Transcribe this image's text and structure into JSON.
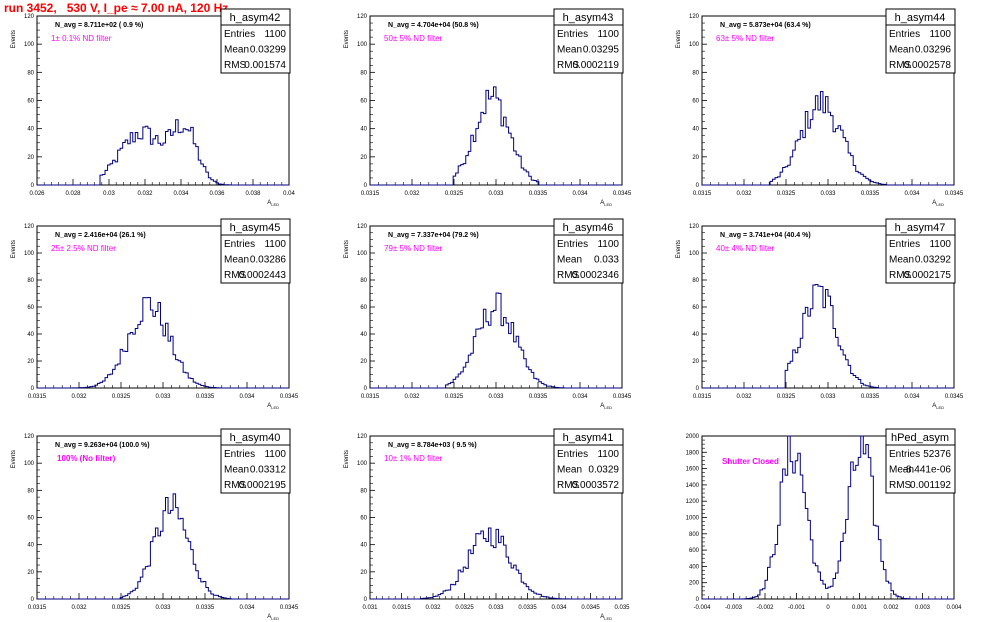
{
  "header": {
    "title": "run 3452,   530 V, I_pe ≈ 7.00 nA, 120 Hz"
  },
  "colors": {
    "histogram": "#000080",
    "annotation": "#ff00ff",
    "title": "#ff0000"
  },
  "chart_data": [
    {
      "type": "bar",
      "name": "h_asym42",
      "title": "N_avg = 8.711e+02 ( 0.9 %)",
      "annotation": "1± 0.1% ND filter",
      "ylabel": "Events",
      "xlabel": "A_{LED}",
      "stats": {
        "Entries": "1100",
        "Mean": "0.03299",
        "RMS": "0.001574"
      },
      "xlim": [
        0.026,
        0.04
      ],
      "ylim": [
        0,
        120
      ],
      "xticks": [
        0.026,
        0.028,
        0.03,
        0.032,
        0.034,
        0.036,
        0.038,
        0.04
      ],
      "xtick_labels": [
        "0.026",
        "0.028",
        "0.03",
        "0.032",
        "0.034",
        "0.036",
        "0.038",
        "0.04"
      ],
      "yticks": [
        0,
        20,
        40,
        60,
        80,
        100,
        120
      ],
      "shape": {
        "type": "bimodal",
        "mu1": 0.0318,
        "s1": 0.0012,
        "a1": 37,
        "mu2": 0.0342,
        "s2": 0.0007,
        "a2": 38,
        "span": [
          0.0295,
          0.0372
        ]
      }
    },
    {
      "type": "bar",
      "name": "h_asym43",
      "title": "N_avg = 4.704e+04 (50.8 %)",
      "annotation": "50± 5% ND filter",
      "ylabel": "Events",
      "xlabel": "A_{LED}",
      "stats": {
        "Entries": "1100",
        "Mean": "0.03295",
        "RMS": "0.0002119"
      },
      "xlim": [
        0.0315,
        0.0345
      ],
      "ylim": [
        0,
        120
      ],
      "xticks": [
        0.0315,
        0.032,
        0.0325,
        0.033,
        0.0335,
        0.034,
        0.0345
      ],
      "xtick_labels": [
        "0.0315",
        "0.032",
        "0.0325",
        "0.033",
        "0.0335",
        "0.034",
        "0.0345"
      ],
      "yticks": [
        0,
        20,
        40,
        60,
        80,
        100,
        120
      ],
      "shape": {
        "type": "gauss",
        "mu": 0.03295,
        "s": 0.00021,
        "a": 62,
        "span": [
          0.0325,
          0.0335
        ]
      }
    },
    {
      "type": "bar",
      "name": "h_asym44",
      "title": "N_avg = 5.873e+04 (63.4 %)",
      "annotation": "63± 5% ND filter",
      "ylabel": "Events",
      "xlabel": "A_{LED}",
      "stats": {
        "Entries": "1100",
        "Mean": "0.03296",
        "RMS": "0.0002578"
      },
      "xlim": [
        0.0315,
        0.0345
      ],
      "ylim": [
        0,
        120
      ],
      "xticks": [
        0.0315,
        0.032,
        0.0325,
        0.033,
        0.0335,
        0.034,
        0.0345
      ],
      "xtick_labels": [
        "0.0315",
        "0.032",
        "0.0325",
        "0.033",
        "0.0335",
        "0.034",
        "0.0345"
      ],
      "yticks": [
        0,
        20,
        40,
        60,
        80,
        100,
        120
      ],
      "shape": {
        "type": "gauss",
        "mu": 0.03292,
        "s": 0.00024,
        "a": 58,
        "span": [
          0.0323,
          0.0337
        ]
      }
    },
    {
      "type": "bar",
      "name": "h_asym45",
      "title": "N_avg = 2.416e+04 (26.1 %)",
      "annotation": "25± 2.5% ND filter",
      "ylabel": "Events",
      "xlabel": "A_{LED}",
      "stats": {
        "Entries": "1100",
        "Mean": "0.03286",
        "RMS": "0.0002443"
      },
      "xlim": [
        0.0315,
        0.0345
      ],
      "ylim": [
        0,
        120
      ],
      "xticks": [
        0.0315,
        0.032,
        0.0325,
        0.033,
        0.0335,
        0.034,
        0.0345
      ],
      "xtick_labels": [
        "0.0315",
        "0.032",
        "0.0325",
        "0.033",
        "0.0335",
        "0.034",
        "0.0345"
      ],
      "yticks": [
        0,
        20,
        40,
        60,
        80,
        100,
        120
      ],
      "shape": {
        "type": "gauss",
        "mu": 0.03283,
        "s": 0.00024,
        "a": 62,
        "span": [
          0.0319,
          0.0337
        ]
      }
    },
    {
      "type": "bar",
      "name": "h_asym46",
      "title": "N_avg = 7.337e+04 (79.2 %)",
      "annotation": "79± 5% ND filter",
      "ylabel": "Events",
      "xlabel": "A_{LED}",
      "stats": {
        "Entries": "1100",
        "Mean": "0.033",
        "RMS": "0.0002346"
      },
      "xlim": [
        0.0315,
        0.0345
      ],
      "ylim": [
        0,
        120
      ],
      "xticks": [
        0.0315,
        0.032,
        0.0325,
        0.033,
        0.0335,
        0.034,
        0.0345
      ],
      "xtick_labels": [
        "0.0315",
        "0.032",
        "0.0325",
        "0.033",
        "0.0335",
        "0.034",
        "0.0345"
      ],
      "yticks": [
        0,
        20,
        40,
        60,
        80,
        100,
        120
      ],
      "shape": {
        "type": "gauss",
        "mu": 0.033,
        "s": 0.00023,
        "a": 60,
        "span": [
          0.0324,
          0.0338
        ]
      }
    },
    {
      "type": "bar",
      "name": "h_asym47",
      "title": "N_avg = 3.741e+04 (40.4 %)",
      "annotation": "40± 4% ND filter",
      "ylabel": "Events",
      "xlabel": "A_{LED}",
      "stats": {
        "Entries": "1100",
        "Mean": "0.03292",
        "RMS": "0.0002175"
      },
      "xlim": [
        0.0315,
        0.0345
      ],
      "ylim": [
        0,
        120
      ],
      "xticks": [
        0.0315,
        0.032,
        0.0325,
        0.033,
        0.0335,
        0.034,
        0.0345
      ],
      "xtick_labels": [
        "0.0315",
        "0.032",
        "0.0325",
        "0.033",
        "0.0335",
        "0.034",
        "0.0345"
      ],
      "yticks": [
        0,
        20,
        40,
        60,
        80,
        100,
        120
      ],
      "shape": {
        "type": "gauss",
        "mu": 0.0329,
        "s": 0.00021,
        "a": 70,
        "span": [
          0.0325,
          0.0336
        ]
      }
    },
    {
      "type": "bar",
      "name": "h_asym40",
      "title": "N_avg = 9.263e+04 (100.0 %)",
      "annotation": "100% (No filter)",
      "ylabel": "Events",
      "xlabel": "A_{LED}",
      "stats": {
        "Entries": "1100",
        "Mean": "0.03312",
        "RMS": "0.0002195"
      },
      "xlim": [
        0.0315,
        0.0345
      ],
      "ylim": [
        0,
        120
      ],
      "xticks": [
        0.0315,
        0.032,
        0.0325,
        0.033,
        0.0335,
        0.034,
        0.0345
      ],
      "xtick_labels": [
        "0.0315",
        "0.032",
        "0.0325",
        "0.033",
        "0.0335",
        "0.034",
        "0.0345"
      ],
      "yticks": [
        0,
        20,
        40,
        60,
        80,
        100,
        120
      ],
      "shape": {
        "type": "gauss",
        "mu": 0.0331,
        "s": 0.00021,
        "a": 66,
        "span": [
          0.0325,
          0.0338
        ]
      }
    },
    {
      "type": "bar",
      "name": "h_asym41",
      "title": "N_avg = 8.784e+03 ( 9.5 %)",
      "annotation": "10± 1% ND filter",
      "ylabel": "Events",
      "xlabel": "A_{LED}",
      "stats": {
        "Entries": "1100",
        "Mean": "0.0329",
        "RMS": "0.0003572"
      },
      "xlim": [
        0.031,
        0.035
      ],
      "ylim": [
        0,
        120
      ],
      "xticks": [
        0.031,
        0.0315,
        0.032,
        0.0325,
        0.033,
        0.0335,
        0.034,
        0.0345,
        0.035
      ],
      "xtick_labels": [
        "0.031",
        "0.0315",
        "0.032",
        "0.0325",
        "0.033",
        "0.0335",
        "0.034",
        "0.0345",
        "0.035"
      ],
      "yticks": [
        0,
        20,
        40,
        60,
        80,
        100,
        120
      ],
      "shape": {
        "type": "gauss",
        "mu": 0.0329,
        "s": 0.00034,
        "a": 48,
        "span": [
          0.0318,
          0.0342
        ]
      }
    },
    {
      "type": "bar",
      "name": "hPed_asym",
      "title": "",
      "annotation": "Shutter Closed",
      "ylabel": "",
      "xlabel": "",
      "stats": {
        "Entries": "52376",
        "Mean": "-8.441e-06",
        "RMS": "0.001192"
      },
      "xlim": [
        -0.004,
        0.004
      ],
      "ylim": [
        0,
        2000
      ],
      "xticks": [
        -0.004,
        -0.003,
        -0.002,
        -0.001,
        0,
        0.001,
        0.002,
        0.003,
        0.004
      ],
      "xtick_labels": [
        "-0.004",
        "-0.003",
        "-0.002",
        "-0.001",
        "0",
        "0.001",
        "0.002",
        "0.003",
        "0.004"
      ],
      "yticks": [
        0,
        200,
        400,
        600,
        800,
        1000,
        1200,
        1400,
        1600,
        1800,
        2000
      ],
      "shape": {
        "type": "bimodal",
        "mu1": -0.0011,
        "s1": 0.00042,
        "a1": 1850,
        "mu2": 0.00105,
        "s2": 0.00042,
        "a2": 1800,
        "span": [
          -0.0032,
          0.0032
        ]
      }
    }
  ]
}
